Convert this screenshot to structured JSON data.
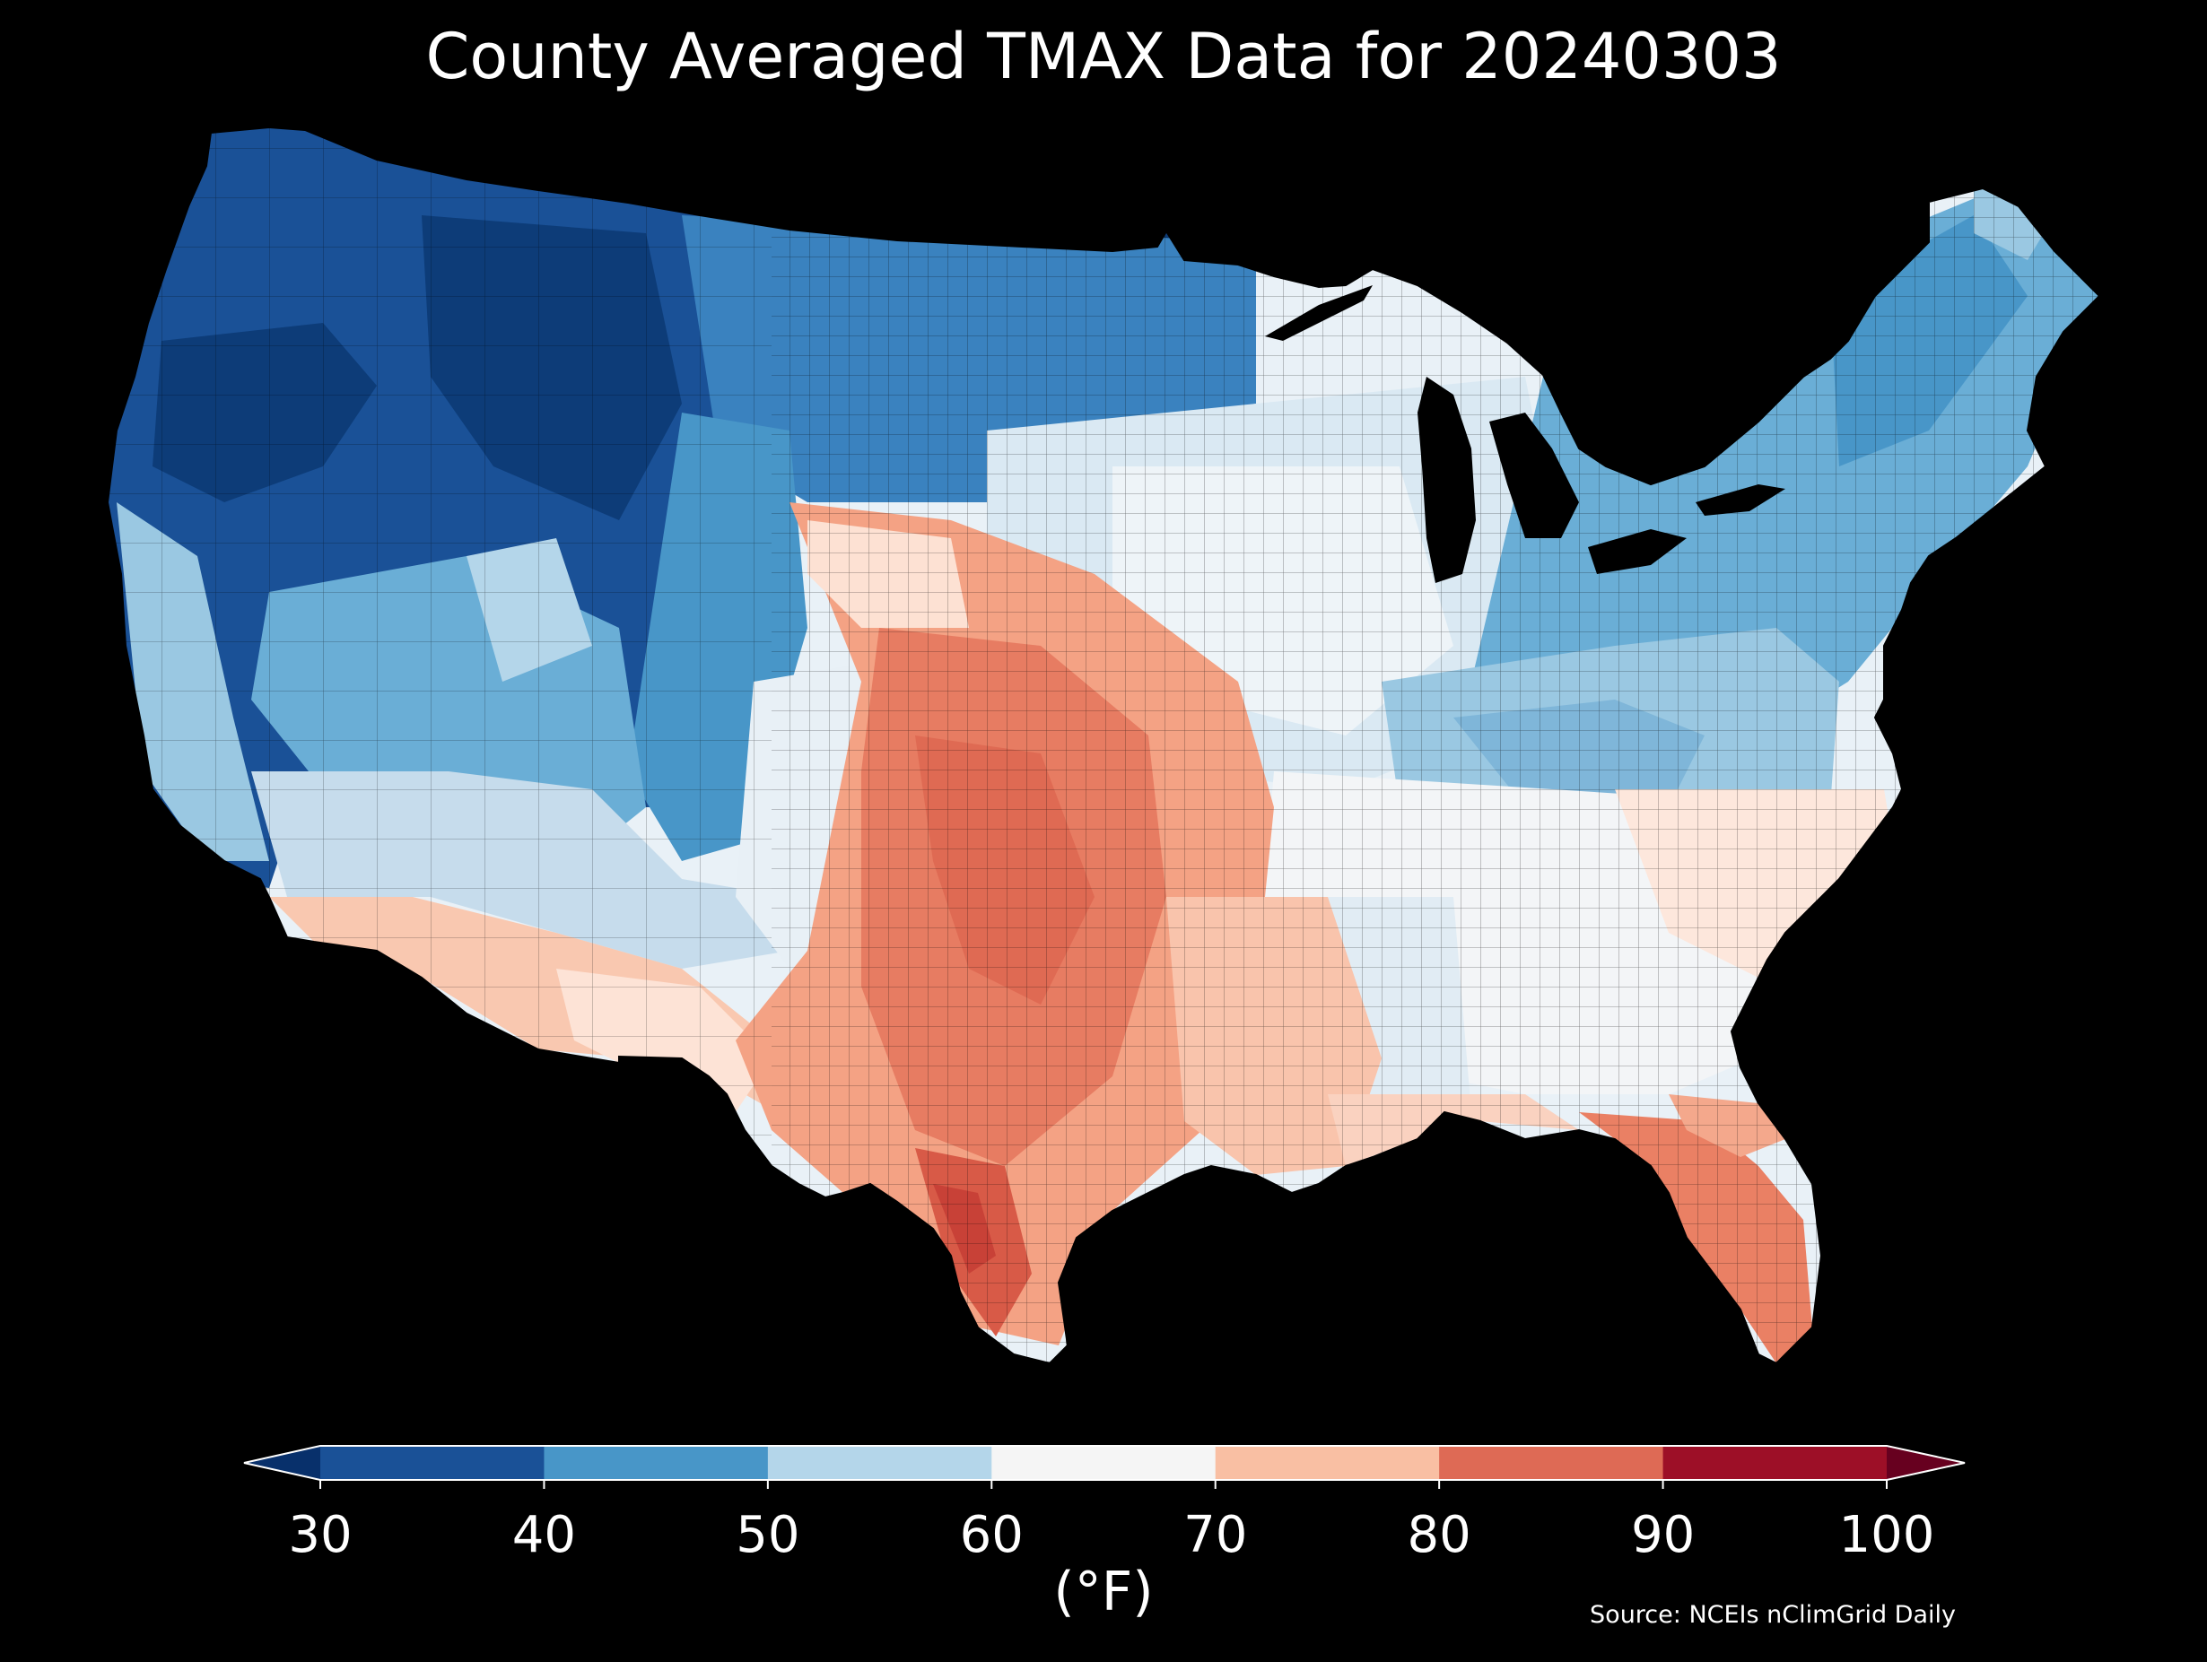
{
  "title": "County Averaged TMAX Data for 20240303",
  "source": "Source: NCEIs nClimGrid Daily",
  "colorbar": {
    "units_label": "(°F)",
    "ticks": [
      "30",
      "40",
      "50",
      "60",
      "70",
      "80",
      "90",
      "100"
    ],
    "bins": [
      {
        "range": [
          30,
          40
        ],
        "color": "#1a5197"
      },
      {
        "range": [
          40,
          50
        ],
        "color": "#4896c8"
      },
      {
        "range": [
          50,
          60
        ],
        "color": "#b4d6ea"
      },
      {
        "range": [
          60,
          70
        ],
        "color": "#f5f5f5"
      },
      {
        "range": [
          70,
          80
        ],
        "color": "#f9bfa3"
      },
      {
        "range": [
          80,
          90
        ],
        "color": "#de6a55"
      },
      {
        "range": [
          90,
          100
        ],
        "color": "#9d0f27"
      }
    ],
    "under_color": "#08306b",
    "over_color": "#67001f",
    "extend": "both"
  },
  "map": {
    "region": "Contiguous United States",
    "units": "counties",
    "variable": "TMAX",
    "regional_values_F": [
      {
        "area": "Pacific Northwest / Northern Rockies",
        "approx_tmax": 34
      },
      {
        "area": "Northern Plains",
        "approx_tmax": 38
      },
      {
        "area": "Great Basin",
        "approx_tmax": 45
      },
      {
        "area": "Southwest deserts",
        "approx_tmax": 72
      },
      {
        "area": "Southern Plains / Texas",
        "approx_tmax": 82
      },
      {
        "area": "South Texas",
        "approx_tmax": 88
      },
      {
        "area": "Midwest",
        "approx_tmax": 60
      },
      {
        "area": "Ohio Valley / Appalachians",
        "approx_tmax": 55
      },
      {
        "area": "Northeast",
        "approx_tmax": 48
      },
      {
        "area": "Southeast",
        "approx_tmax": 70
      },
      {
        "area": "Florida",
        "approx_tmax": 80
      }
    ]
  }
}
